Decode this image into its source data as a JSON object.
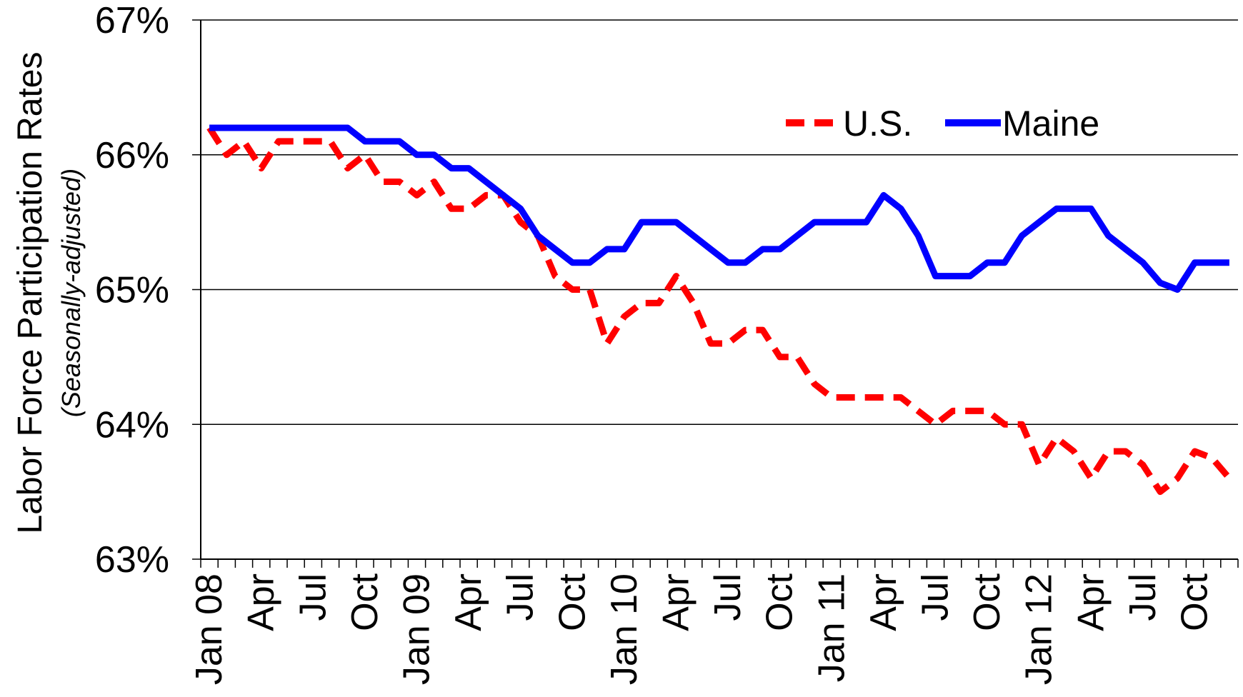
{
  "chart_data": {
    "type": "line",
    "ylabel": "Labor Force Participation Rates",
    "ylabel_note": "(Seasonally-adjusted)",
    "categories": [
      "Jan 08",
      null,
      null,
      "Apr",
      null,
      null,
      "Jul",
      null,
      null,
      "Oct",
      null,
      null,
      "Jan 09",
      null,
      null,
      "Apr",
      null,
      null,
      "Jul",
      null,
      null,
      "Oct",
      null,
      null,
      "Jan 10",
      null,
      null,
      "Apr",
      null,
      null,
      "Jul",
      null,
      null,
      "Oct",
      null,
      null,
      "Jan 11",
      null,
      null,
      "Apr",
      null,
      null,
      "Jul",
      null,
      null,
      "Oct",
      null,
      null,
      "Jan 12",
      null,
      null,
      "Apr",
      null,
      null,
      "Jul",
      null,
      null,
      "Oct",
      null,
      null
    ],
    "series": [
      {
        "name": "U.S.",
        "color": "#ff0000",
        "dashed": true,
        "values": [
          66.2,
          66.0,
          66.1,
          65.9,
          66.1,
          66.1,
          66.1,
          66.1,
          65.9,
          66.0,
          65.8,
          65.8,
          65.7,
          65.8,
          65.6,
          65.6,
          65.7,
          65.7,
          65.5,
          65.4,
          65.1,
          65.0,
          65.0,
          64.6,
          64.8,
          64.9,
          64.9,
          65.1,
          64.9,
          64.6,
          64.6,
          64.7,
          64.7,
          64.5,
          64.5,
          64.3,
          64.2,
          64.2,
          64.2,
          64.2,
          64.2,
          64.1,
          64.0,
          64.1,
          64.1,
          64.1,
          64.0,
          64.0,
          63.7,
          63.9,
          63.8,
          63.6,
          63.8,
          63.8,
          63.7,
          63.5,
          63.6,
          63.8,
          63.75,
          63.6
        ]
      },
      {
        "name": "Maine",
        "color": "#0000ff",
        "dashed": false,
        "values": [
          66.2,
          66.2,
          66.2,
          66.2,
          66.2,
          66.2,
          66.2,
          66.2,
          66.2,
          66.1,
          66.1,
          66.1,
          66.0,
          66.0,
          65.9,
          65.9,
          65.8,
          65.7,
          65.6,
          65.4,
          65.3,
          65.2,
          65.2,
          65.3,
          65.3,
          65.5,
          65.5,
          65.5,
          65.4,
          65.3,
          65.2,
          65.2,
          65.3,
          65.3,
          65.4,
          65.5,
          65.5,
          65.5,
          65.5,
          65.7,
          65.6,
          65.4,
          65.1,
          65.1,
          65.1,
          65.2,
          65.2,
          65.4,
          65.5,
          65.6,
          65.6,
          65.6,
          65.4,
          65.3,
          65.2,
          65.05,
          65.0,
          65.2,
          65.2,
          65.2
        ]
      }
    ],
    "ylim": [
      63,
      67
    ],
    "yticks": [
      {
        "value": 63,
        "label": "63%"
      },
      {
        "value": 64,
        "label": "64%"
      },
      {
        "value": 65,
        "label": "65%"
      },
      {
        "value": 66,
        "label": "66%"
      },
      {
        "value": 67,
        "label": "67%"
      }
    ],
    "grid": true,
    "legend": "top-right"
  }
}
